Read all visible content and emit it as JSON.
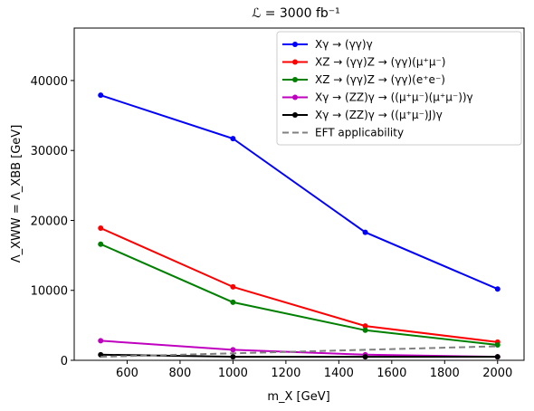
{
  "chart_data": {
    "type": "line",
    "title": "ℒ = 3000 fb⁻¹",
    "xlabel": "m_X [GeV]",
    "ylabel": "Λ_XWW = Λ_XBB [GeV]",
    "xlim": [
      400,
      2100
    ],
    "ylim": [
      0,
      47500
    ],
    "xticks": [
      600,
      800,
      1000,
      1200,
      1400,
      1600,
      1800,
      2000
    ],
    "yticks": [
      0,
      10000,
      20000,
      30000,
      40000
    ],
    "grid": false,
    "legend_position": "top-right",
    "x": [
      500,
      1000,
      1500,
      2000
    ],
    "series": [
      {
        "name": "Xγ → (γγ)γ",
        "color": "#0000ff",
        "style": "solid",
        "markers": true,
        "values": [
          37900,
          31700,
          18300,
          10200
        ]
      },
      {
        "name": "XZ → (γγ)Z → (γγ)(μ⁺μ⁻)",
        "color": "#ff0000",
        "style": "solid",
        "markers": true,
        "values": [
          18900,
          10500,
          4900,
          2600
        ]
      },
      {
        "name": "XZ → (γγ)Z → (γγ)(e⁺e⁻)",
        "color": "#008000",
        "style": "solid",
        "markers": true,
        "values": [
          16600,
          8300,
          4300,
          2200
        ]
      },
      {
        "name": "Xγ → (ZZ)γ → ((μ⁺μ⁻)(μ⁺μ⁻))γ",
        "color": "#bf00bf",
        "style": "solid",
        "markers": true,
        "values": [
          2800,
          1500,
          800,
          500
        ]
      },
      {
        "name": "Xγ → (ZZ)γ → ((μ⁺μ⁻)J)γ",
        "color": "#000000",
        "style": "solid",
        "markers": true,
        "values": [
          800,
          500,
          500,
          500
        ]
      },
      {
        "name": "EFT applicability",
        "color": "#808080",
        "style": "dashed",
        "markers": false,
        "values": [
          500,
          1000,
          1500,
          2000
        ]
      }
    ]
  }
}
